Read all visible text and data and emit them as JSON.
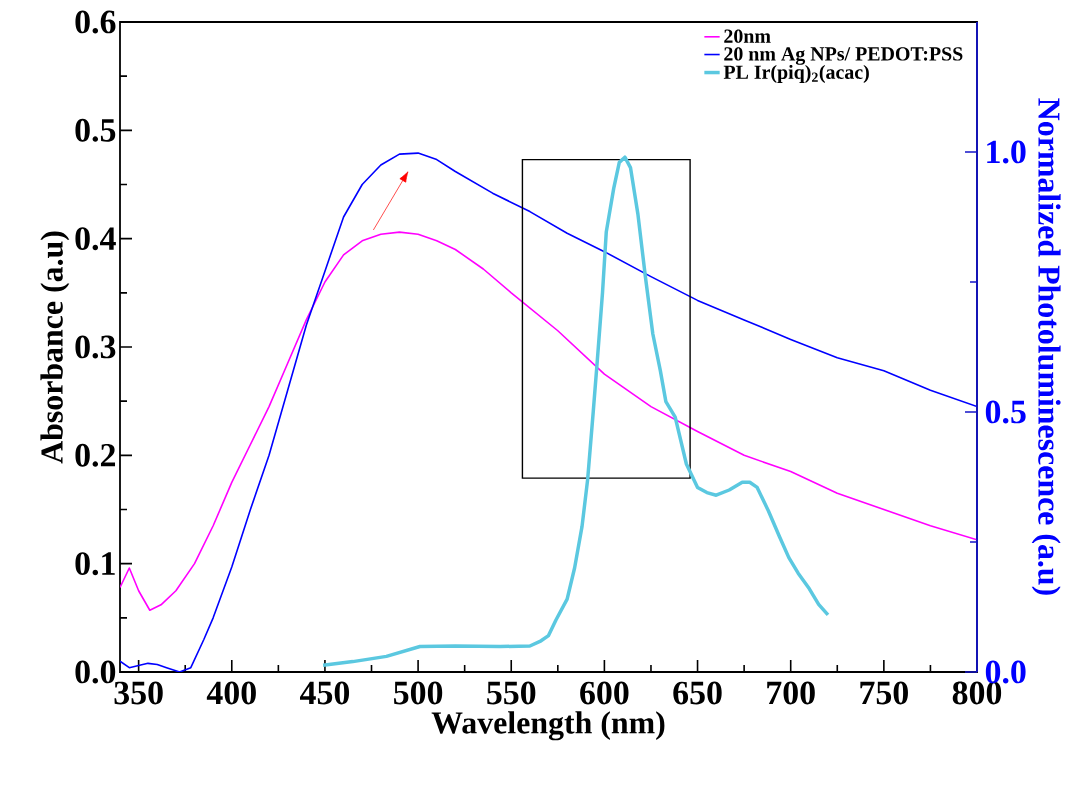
{
  "chart_data": {
    "type": "line",
    "xlabel": "Wavelength (nm)",
    "ylabel": "Absorbance (a.u)",
    "y2label": "Normalized Photoluminescence (a.u)",
    "xlim": [
      340,
      800
    ],
    "xticks": [
      350,
      400,
      450,
      500,
      550,
      600,
      650,
      700,
      750,
      800
    ],
    "ylim": [
      0,
      0.6
    ],
    "yticks": [
      {
        "value": 0,
        "label": "0.0"
      },
      0.1,
      0.2,
      0.3,
      0.4,
      0.5,
      0.6
    ],
    "y2lim": [
      0,
      1.25
    ],
    "y2ticks": [
      {
        "value": 0,
        "label": "0.0"
      },
      0.5,
      {
        "value": 1,
        "label": "1.0"
      }
    ],
    "legend": "top right",
    "grid": false,
    "marker": "none",
    "line_style": "solid",
    "series": [
      {
        "name": "20nm",
        "color": "#ff00ff",
        "x": [
          340,
          345,
          350,
          356,
          362,
          370,
          380,
          390,
          400,
          410,
          420,
          430,
          440,
          450,
          460,
          470,
          480,
          490,
          500,
          510,
          520,
          535,
          550,
          575,
          600,
          625,
          650,
          675,
          700,
          725,
          750,
          775,
          800
        ],
        "values": [
          0.078,
          0.096,
          0.075,
          0.057,
          0.062,
          0.075,
          0.1,
          0.135,
          0.175,
          0.21,
          0.245,
          0.285,
          0.325,
          0.36,
          0.385,
          0.398,
          0.404,
          0.406,
          0.404,
          0.398,
          0.39,
          0.372,
          0.35,
          0.315,
          0.275,
          0.245,
          0.222,
          0.2,
          0.185,
          0.165,
          0.15,
          0.135,
          0.122
        ]
      },
      {
        "name": "20 nm Ag NPs/ PEDOT:PSS",
        "color": "#0000ff",
        "x": [
          340,
          345,
          350,
          355,
          360,
          365,
          372,
          378,
          385,
          390,
          400,
          410,
          420,
          430,
          440,
          450,
          460,
          470,
          480,
          490,
          500,
          510,
          520,
          540,
          560,
          580,
          600,
          625,
          650,
          675,
          700,
          725,
          750,
          775,
          800
        ],
        "values": [
          0.01,
          0.004,
          0.006,
          0.008,
          0.007,
          0.004,
          0.0,
          0.004,
          0.03,
          0.05,
          0.097,
          0.15,
          0.2,
          0.26,
          0.32,
          0.37,
          0.42,
          0.45,
          0.468,
          0.478,
          0.479,
          0.473,
          0.462,
          0.442,
          0.425,
          0.405,
          0.388,
          0.365,
          0.343,
          0.325,
          0.307,
          0.29,
          0.278,
          0.26,
          0.245
        ]
      },
      {
        "name": "PL Ir(piq)$_{2}$(acac)",
        "color": "#5bc8e0",
        "axis": "y2",
        "x": [
          449,
          465,
          483,
          501,
          520,
          544,
          560,
          566,
          570,
          574,
          580,
          584,
          588,
          591,
          594,
          596,
          599,
          601,
          605,
          608,
          611,
          614,
          618,
          622,
          626,
          630,
          633,
          638,
          644,
          650,
          655,
          660,
          667,
          674,
          678,
          682,
          688,
          694,
          699,
          704,
          710,
          715,
          720
        ],
        "values": [
          0.013,
          0.02,
          0.03,
          0.049,
          0.05,
          0.049,
          0.05,
          0.06,
          0.07,
          0.1,
          0.14,
          0.2,
          0.28,
          0.37,
          0.5,
          0.59,
          0.73,
          0.846,
          0.93,
          0.98,
          0.99,
          0.97,
          0.88,
          0.76,
          0.65,
          0.58,
          0.52,
          0.49,
          0.4,
          0.355,
          0.345,
          0.34,
          0.35,
          0.365,
          0.365,
          0.355,
          0.31,
          0.26,
          0.22,
          0.19,
          0.16,
          0.13,
          0.11
        ]
      }
    ]
  }
}
